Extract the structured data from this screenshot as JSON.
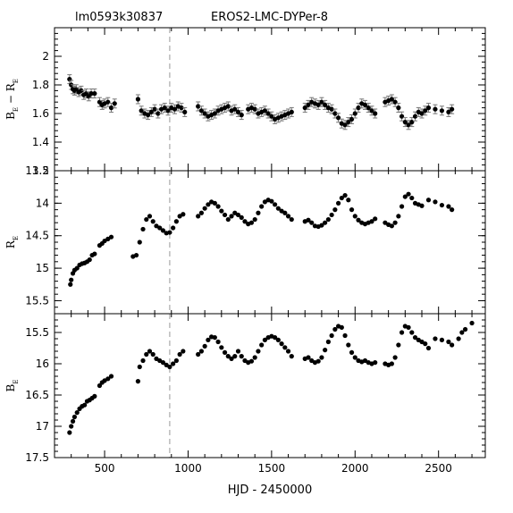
{
  "header": {
    "id_label": "lm0593k30837",
    "title": "EROS2-LMC-DYPer-8"
  },
  "chart_data": [
    {
      "type": "scatter",
      "panel": "top",
      "ylabel": "B_E − R_E",
      "ylim": [
        1.2,
        2.2
      ],
      "yticks": [
        1.2,
        1.4,
        1.6,
        1.8,
        2
      ],
      "yticklabels": [
        "1.2",
        "1.4",
        "1.6",
        "1.8",
        "2"
      ],
      "xlim": [
        200,
        2780
      ],
      "error_bars": true,
      "points": [
        [
          290,
          1.84
        ],
        [
          300,
          1.8
        ],
        [
          310,
          1.77
        ],
        [
          320,
          1.76
        ],
        [
          330,
          1.77
        ],
        [
          345,
          1.75
        ],
        [
          360,
          1.76
        ],
        [
          375,
          1.73
        ],
        [
          390,
          1.74
        ],
        [
          405,
          1.72
        ],
        [
          420,
          1.74
        ],
        [
          440,
          1.74
        ],
        [
          470,
          1.68
        ],
        [
          485,
          1.66
        ],
        [
          500,
          1.67
        ],
        [
          520,
          1.68
        ],
        [
          540,
          1.64
        ],
        [
          560,
          1.67
        ],
        [
          700,
          1.7
        ],
        [
          720,
          1.62
        ],
        [
          740,
          1.6
        ],
        [
          760,
          1.59
        ],
        [
          780,
          1.61
        ],
        [
          800,
          1.63
        ],
        [
          820,
          1.6
        ],
        [
          840,
          1.63
        ],
        [
          860,
          1.64
        ],
        [
          880,
          1.62
        ],
        [
          900,
          1.64
        ],
        [
          920,
          1.63
        ],
        [
          940,
          1.65
        ],
        [
          960,
          1.64
        ],
        [
          980,
          1.61
        ],
        [
          1060,
          1.65
        ],
        [
          1080,
          1.62
        ],
        [
          1100,
          1.6
        ],
        [
          1120,
          1.58
        ],
        [
          1140,
          1.59
        ],
        [
          1160,
          1.6
        ],
        [
          1180,
          1.62
        ],
        [
          1200,
          1.63
        ],
        [
          1220,
          1.64
        ],
        [
          1240,
          1.65
        ],
        [
          1260,
          1.62
        ],
        [
          1280,
          1.63
        ],
        [
          1300,
          1.61
        ],
        [
          1320,
          1.59
        ],
        [
          1360,
          1.63
        ],
        [
          1380,
          1.64
        ],
        [
          1400,
          1.63
        ],
        [
          1420,
          1.6
        ],
        [
          1440,
          1.61
        ],
        [
          1460,
          1.62
        ],
        [
          1480,
          1.6
        ],
        [
          1500,
          1.58
        ],
        [
          1520,
          1.56
        ],
        [
          1540,
          1.57
        ],
        [
          1560,
          1.58
        ],
        [
          1580,
          1.59
        ],
        [
          1600,
          1.6
        ],
        [
          1620,
          1.61
        ],
        [
          1700,
          1.64
        ],
        [
          1720,
          1.66
        ],
        [
          1740,
          1.68
        ],
        [
          1760,
          1.67
        ],
        [
          1780,
          1.66
        ],
        [
          1800,
          1.68
        ],
        [
          1820,
          1.66
        ],
        [
          1840,
          1.64
        ],
        [
          1860,
          1.63
        ],
        [
          1880,
          1.6
        ],
        [
          1900,
          1.57
        ],
        [
          1920,
          1.53
        ],
        [
          1940,
          1.52
        ],
        [
          1960,
          1.54
        ],
        [
          1980,
          1.56
        ],
        [
          2000,
          1.6
        ],
        [
          2020,
          1.64
        ],
        [
          2040,
          1.67
        ],
        [
          2060,
          1.66
        ],
        [
          2080,
          1.64
        ],
        [
          2100,
          1.62
        ],
        [
          2120,
          1.6
        ],
        [
          2180,
          1.68
        ],
        [
          2200,
          1.69
        ],
        [
          2220,
          1.7
        ],
        [
          2240,
          1.68
        ],
        [
          2260,
          1.64
        ],
        [
          2280,
          1.58
        ],
        [
          2300,
          1.54
        ],
        [
          2320,
          1.52
        ],
        [
          2340,
          1.54
        ],
        [
          2360,
          1.58
        ],
        [
          2380,
          1.61
        ],
        [
          2400,
          1.6
        ],
        [
          2420,
          1.62
        ],
        [
          2440,
          1.64
        ],
        [
          2480,
          1.63
        ],
        [
          2520,
          1.62
        ],
        [
          2560,
          1.61
        ],
        [
          2580,
          1.63
        ]
      ]
    },
    {
      "type": "scatter",
      "panel": "middle",
      "ylabel": "R_E",
      "ylim": [
        15.7,
        13.5
      ],
      "yticks": [
        13.5,
        14,
        14.5,
        15,
        15.5
      ],
      "yticklabels": [
        "13.5",
        "14",
        "14.5",
        "15",
        "15.5"
      ],
      "xlim": [
        200,
        2780
      ],
      "points": [
        [
          295,
          15.25
        ],
        [
          300,
          15.18
        ],
        [
          310,
          15.08
        ],
        [
          320,
          15.03
        ],
        [
          335,
          15.0
        ],
        [
          350,
          14.95
        ],
        [
          365,
          14.93
        ],
        [
          380,
          14.92
        ],
        [
          395,
          14.9
        ],
        [
          410,
          14.87
        ],
        [
          425,
          14.8
        ],
        [
          440,
          14.78
        ],
        [
          470,
          14.65
        ],
        [
          485,
          14.62
        ],
        [
          500,
          14.58
        ],
        [
          520,
          14.55
        ],
        [
          540,
          14.52
        ],
        [
          670,
          14.82
        ],
        [
          690,
          14.8
        ],
        [
          710,
          14.6
        ],
        [
          730,
          14.4
        ],
        [
          750,
          14.25
        ],
        [
          770,
          14.2
        ],
        [
          790,
          14.28
        ],
        [
          810,
          14.35
        ],
        [
          830,
          14.38
        ],
        [
          850,
          14.42
        ],
        [
          870,
          14.46
        ],
        [
          890,
          14.45
        ],
        [
          910,
          14.38
        ],
        [
          930,
          14.28
        ],
        [
          950,
          14.2
        ],
        [
          970,
          14.17
        ],
        [
          1060,
          14.2
        ],
        [
          1080,
          14.15
        ],
        [
          1100,
          14.08
        ],
        [
          1120,
          14.02
        ],
        [
          1140,
          13.98
        ],
        [
          1160,
          14.0
        ],
        [
          1180,
          14.05
        ],
        [
          1200,
          14.12
        ],
        [
          1220,
          14.18
        ],
        [
          1240,
          14.25
        ],
        [
          1260,
          14.2
        ],
        [
          1280,
          14.15
        ],
        [
          1300,
          14.18
        ],
        [
          1320,
          14.22
        ],
        [
          1340,
          14.28
        ],
        [
          1360,
          14.32
        ],
        [
          1380,
          14.3
        ],
        [
          1400,
          14.25
        ],
        [
          1420,
          14.15
        ],
        [
          1440,
          14.05
        ],
        [
          1460,
          13.98
        ],
        [
          1480,
          13.95
        ],
        [
          1500,
          13.97
        ],
        [
          1520,
          14.02
        ],
        [
          1540,
          14.08
        ],
        [
          1560,
          14.12
        ],
        [
          1580,
          14.15
        ],
        [
          1600,
          14.2
        ],
        [
          1620,
          14.25
        ],
        [
          1700,
          14.28
        ],
        [
          1720,
          14.26
        ],
        [
          1740,
          14.3
        ],
        [
          1760,
          14.35
        ],
        [
          1780,
          14.36
        ],
        [
          1800,
          14.34
        ],
        [
          1820,
          14.3
        ],
        [
          1840,
          14.25
        ],
        [
          1860,
          14.18
        ],
        [
          1880,
          14.1
        ],
        [
          1900,
          14.0
        ],
        [
          1920,
          13.92
        ],
        [
          1940,
          13.88
        ],
        [
          1960,
          13.95
        ],
        [
          1980,
          14.1
        ],
        [
          2000,
          14.2
        ],
        [
          2020,
          14.26
        ],
        [
          2040,
          14.3
        ],
        [
          2060,
          14.32
        ],
        [
          2080,
          14.3
        ],
        [
          2100,
          14.28
        ],
        [
          2120,
          14.24
        ],
        [
          2180,
          14.3
        ],
        [
          2200,
          14.33
        ],
        [
          2220,
          14.35
        ],
        [
          2240,
          14.3
        ],
        [
          2260,
          14.2
        ],
        [
          2280,
          14.05
        ],
        [
          2300,
          13.9
        ],
        [
          2320,
          13.86
        ],
        [
          2340,
          13.92
        ],
        [
          2360,
          14.0
        ],
        [
          2380,
          14.02
        ],
        [
          2400,
          14.04
        ],
        [
          2440,
          13.95
        ],
        [
          2480,
          13.98
        ],
        [
          2520,
          14.03
        ],
        [
          2560,
          14.05
        ],
        [
          2580,
          14.1
        ]
      ]
    },
    {
      "type": "scatter",
      "panel": "bottom",
      "ylabel": "B_E",
      "ylim": [
        17.5,
        15.2
      ],
      "yticks": [
        15.5,
        16,
        16.5,
        17,
        17.5
      ],
      "yticklabels": [
        "15.5",
        "16",
        "16.5",
        "17",
        "17.5"
      ],
      "xlabel": "HJD - 2450000",
      "xlim": [
        200,
        2780
      ],
      "xticks": [
        500,
        1000,
        1500,
        2000,
        2500
      ],
      "xticklabels": [
        "500",
        "1000",
        "1500",
        "2000",
        "2500"
      ],
      "vline": 890,
      "points": [
        [
          290,
          17.1
        ],
        [
          300,
          17.0
        ],
        [
          310,
          16.92
        ],
        [
          320,
          16.85
        ],
        [
          335,
          16.78
        ],
        [
          350,
          16.72
        ],
        [
          365,
          16.68
        ],
        [
          380,
          16.66
        ],
        [
          395,
          16.6
        ],
        [
          410,
          16.58
        ],
        [
          425,
          16.55
        ],
        [
          440,
          16.52
        ],
        [
          470,
          16.35
        ],
        [
          485,
          16.3
        ],
        [
          500,
          16.27
        ],
        [
          520,
          16.24
        ],
        [
          540,
          16.2
        ],
        [
          700,
          16.28
        ],
        [
          710,
          16.05
        ],
        [
          730,
          15.95
        ],
        [
          750,
          15.85
        ],
        [
          770,
          15.8
        ],
        [
          790,
          15.85
        ],
        [
          810,
          15.92
        ],
        [
          830,
          15.95
        ],
        [
          850,
          15.98
        ],
        [
          870,
          16.02
        ],
        [
          890,
          16.05
        ],
        [
          910,
          16.0
        ],
        [
          930,
          15.95
        ],
        [
          950,
          15.85
        ],
        [
          970,
          15.8
        ],
        [
          1060,
          15.85
        ],
        [
          1080,
          15.8
        ],
        [
          1100,
          15.72
        ],
        [
          1120,
          15.62
        ],
        [
          1140,
          15.57
        ],
        [
          1160,
          15.58
        ],
        [
          1180,
          15.65
        ],
        [
          1200,
          15.74
        ],
        [
          1220,
          15.82
        ],
        [
          1240,
          15.88
        ],
        [
          1260,
          15.92
        ],
        [
          1280,
          15.88
        ],
        [
          1300,
          15.8
        ],
        [
          1320,
          15.88
        ],
        [
          1340,
          15.95
        ],
        [
          1360,
          15.98
        ],
        [
          1380,
          15.96
        ],
        [
          1400,
          15.9
        ],
        [
          1420,
          15.8
        ],
        [
          1440,
          15.7
        ],
        [
          1460,
          15.62
        ],
        [
          1480,
          15.58
        ],
        [
          1500,
          15.56
        ],
        [
          1520,
          15.58
        ],
        [
          1540,
          15.62
        ],
        [
          1560,
          15.68
        ],
        [
          1580,
          15.74
        ],
        [
          1600,
          15.8
        ],
        [
          1620,
          15.88
        ],
        [
          1700,
          15.92
        ],
        [
          1720,
          15.9
        ],
        [
          1740,
          15.95
        ],
        [
          1760,
          15.98
        ],
        [
          1780,
          15.96
        ],
        [
          1800,
          15.9
        ],
        [
          1820,
          15.78
        ],
        [
          1840,
          15.65
        ],
        [
          1860,
          15.55
        ],
        [
          1880,
          15.45
        ],
        [
          1900,
          15.4
        ],
        [
          1920,
          15.42
        ],
        [
          1940,
          15.55
        ],
        [
          1960,
          15.7
        ],
        [
          1980,
          15.82
        ],
        [
          2000,
          15.9
        ],
        [
          2020,
          15.95
        ],
        [
          2040,
          15.97
        ],
        [
          2060,
          15.95
        ],
        [
          2080,
          15.98
        ],
        [
          2100,
          16.0
        ],
        [
          2120,
          15.98
        ],
        [
          2180,
          16.0
        ],
        [
          2200,
          16.02
        ],
        [
          2220,
          16.0
        ],
        [
          2240,
          15.9
        ],
        [
          2260,
          15.7
        ],
        [
          2280,
          15.5
        ],
        [
          2300,
          15.4
        ],
        [
          2320,
          15.42
        ],
        [
          2340,
          15.5
        ],
        [
          2360,
          15.58
        ],
        [
          2380,
          15.62
        ],
        [
          2400,
          15.65
        ],
        [
          2420,
          15.68
        ],
        [
          2440,
          15.75
        ],
        [
          2480,
          15.6
        ],
        [
          2520,
          15.62
        ],
        [
          2560,
          15.65
        ],
        [
          2580,
          15.7
        ],
        [
          2620,
          15.6
        ],
        [
          2640,
          15.5
        ],
        [
          2660,
          15.45
        ],
        [
          2700,
          15.35
        ]
      ]
    }
  ]
}
